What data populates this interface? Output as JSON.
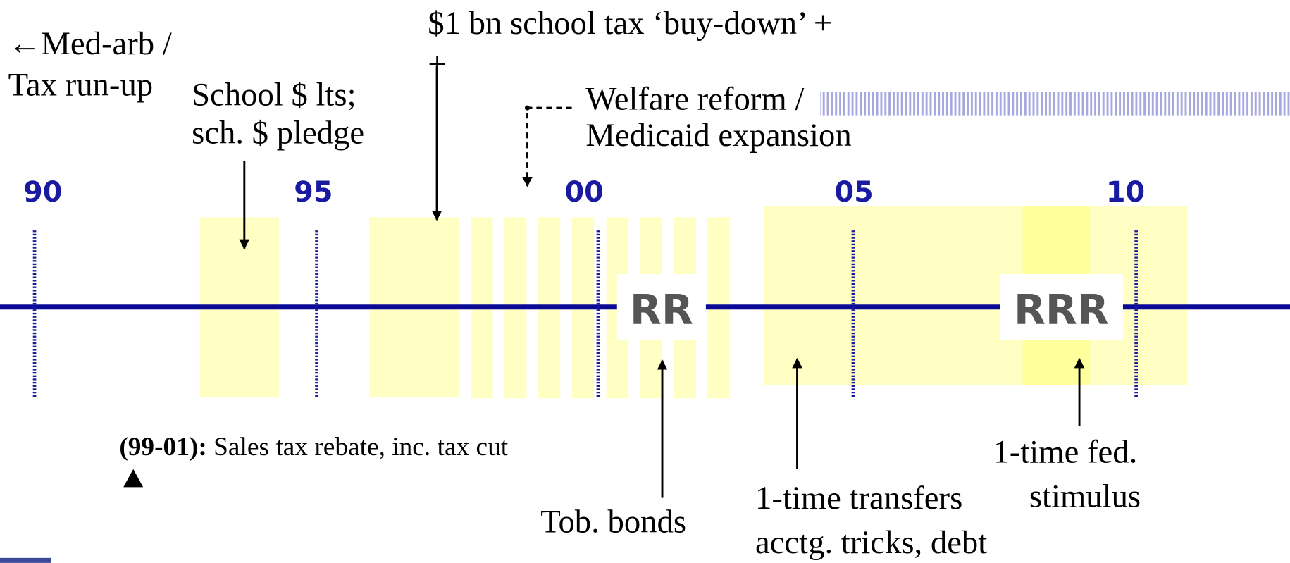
{
  "annotations": {
    "med_arb": [
      "←Med-arb /",
      "Tax run-up"
    ],
    "school": [
      "School  $ lts;",
      "sch. $ pledge"
    ],
    "buy_down": [
      "$1 bn school tax ‘buy-down’ +",
      "+"
    ],
    "welfare": [
      "Welfare reform /",
      "Medicaid expansion"
    ],
    "tob_bonds": "Tob. bonds",
    "transfers": [
      "1-time transfers",
      "acctg. tricks, debt"
    ],
    "stimulus": [
      "1-time fed.",
      "stimulus"
    ]
  },
  "years": [
    "90",
    "95",
    "00",
    "05",
    "10"
  ],
  "boxes": [
    "RR",
    "RRR"
  ],
  "footnote": {
    "bold": "(99-01):",
    "text": "Sales tax rebate, inc. tax cut"
  }
}
